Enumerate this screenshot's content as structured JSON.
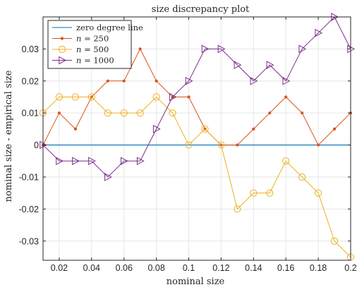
{
  "chart_data": {
    "type": "line",
    "title": "size discrepancy plot",
    "xlabel": "nominal size",
    "ylabel": "nominal size - empirical size",
    "xlim": [
      0.01,
      0.2
    ],
    "ylim": [
      -0.036,
      0.04
    ],
    "xticks": [
      0.02,
      0.04,
      0.06,
      0.08,
      0.1,
      0.12,
      0.14,
      0.16,
      0.18,
      0.2
    ],
    "xtick_labels": [
      "0.02",
      "0.04",
      "0.06",
      "0.08",
      "0.1",
      "0.12",
      "0.14",
      "0.16",
      "0.18",
      "0.2"
    ],
    "yticks": [
      -0.03,
      -0.02,
      -0.01,
      0,
      0.01,
      0.02,
      0.03
    ],
    "ytick_labels": [
      "-0.03",
      "-0.02",
      "-0.01",
      "0",
      "0.01",
      "0.02",
      "0.03"
    ],
    "grid": true,
    "legend_position": "top-left",
    "x": [
      0.01,
      0.02,
      0.03,
      0.04,
      0.05,
      0.06,
      0.07,
      0.08,
      0.09,
      0.1,
      0.11,
      0.12,
      0.13,
      0.14,
      0.15,
      0.16,
      0.17,
      0.18,
      0.19,
      0.2
    ],
    "series": [
      {
        "name": "zero degree line",
        "marker": "none",
        "color": "#0072BD",
        "values": [
          0,
          0,
          0,
          0,
          0,
          0,
          0,
          0,
          0,
          0,
          0,
          0,
          0,
          0,
          0,
          0,
          0,
          0,
          0,
          0
        ]
      },
      {
        "name": "n = 250",
        "name_var": "n",
        "name_rest": " = 250",
        "marker": "dot",
        "color": "#D95319",
        "values": [
          0,
          0.01,
          0.005,
          0.015,
          0.02,
          0.02,
          0.03,
          0.02,
          0.015,
          0.015,
          0.005,
          0,
          0,
          0.005,
          0.01,
          0.015,
          0.01,
          0,
          0.005,
          0.01
        ]
      },
      {
        "name": "n = 500",
        "name_var": "n",
        "name_rest": " = 500",
        "marker": "circle",
        "color": "#EDB120",
        "values": [
          0.01,
          0.015,
          0.015,
          0.015,
          0.01,
          0.01,
          0.01,
          0.015,
          0.01,
          0,
          0.005,
          0,
          -0.02,
          -0.015,
          -0.015,
          -0.005,
          -0.01,
          -0.015,
          -0.03,
          -0.035
        ]
      },
      {
        "name": "n = 1000",
        "name_var": "n",
        "name_rest": " = 1000",
        "marker": "triangle-right",
        "color": "#7E2F8E",
        "values": [
          0,
          -0.005,
          -0.005,
          -0.005,
          -0.01,
          -0.005,
          -0.005,
          0.005,
          0.015,
          0.02,
          0.03,
          0.03,
          0.025,
          0.02,
          0.025,
          0.02,
          0.03,
          0.035,
          0.04,
          0.03
        ]
      }
    ]
  }
}
